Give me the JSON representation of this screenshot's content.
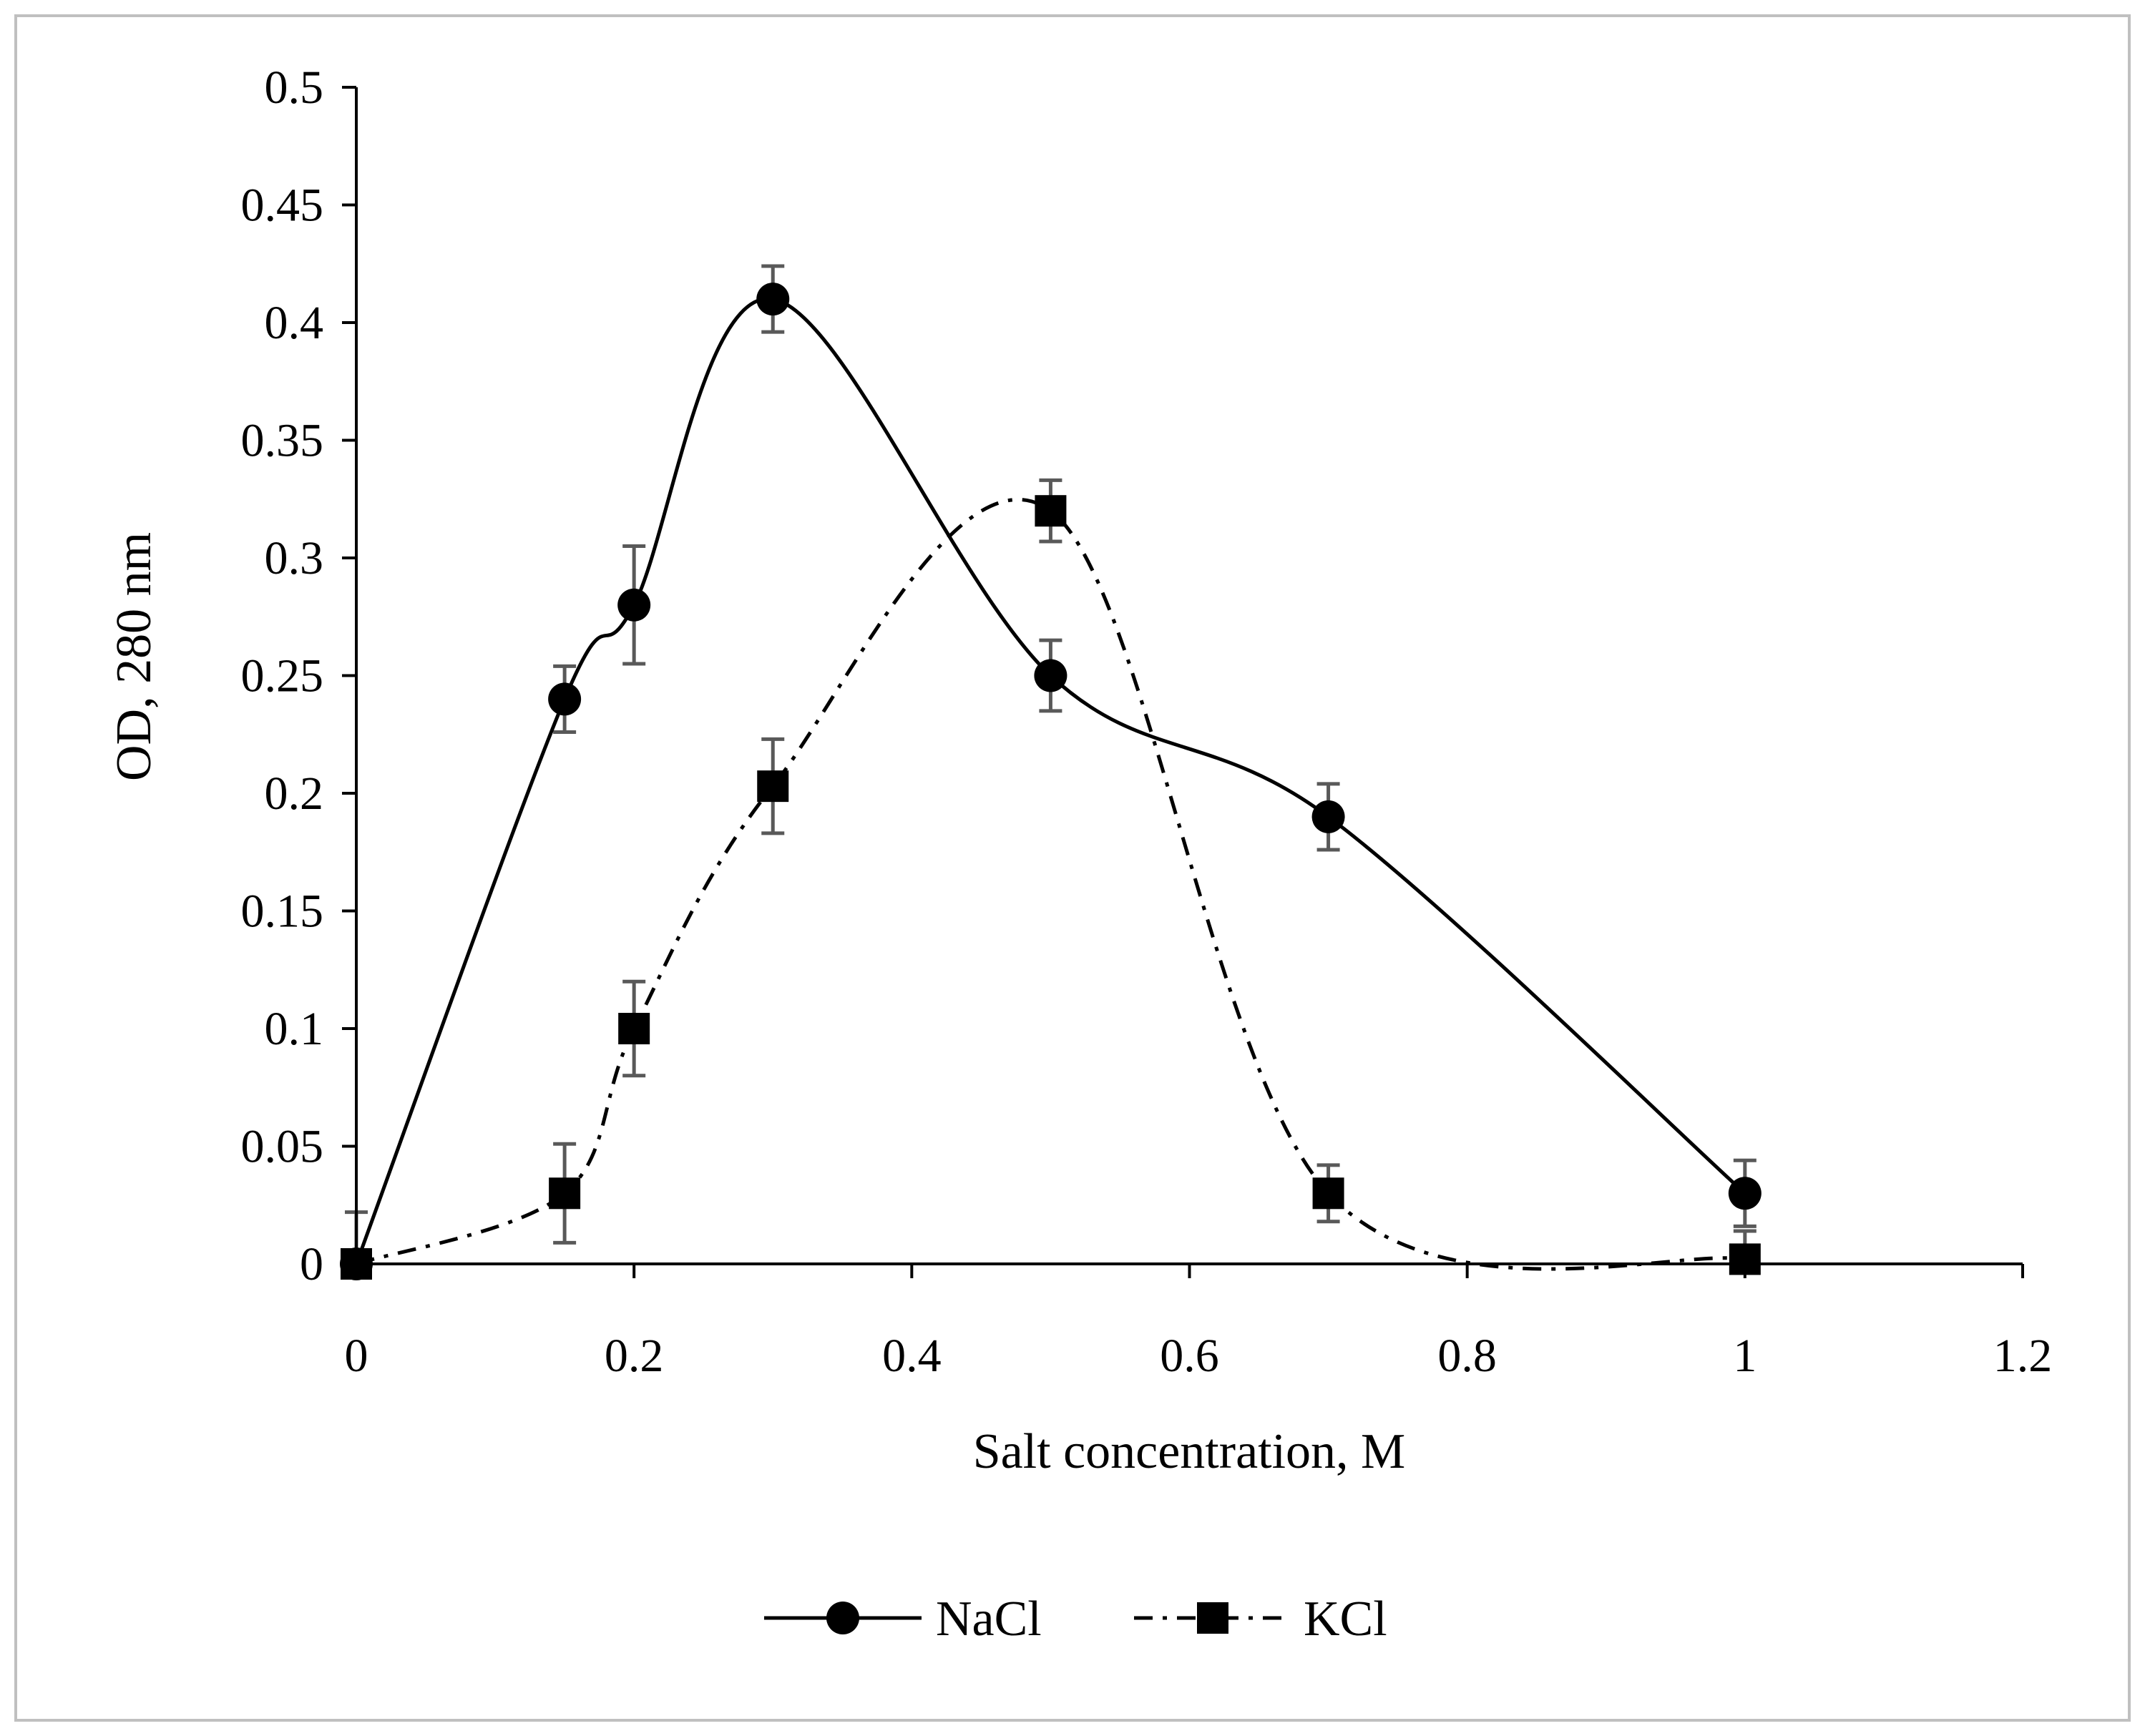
{
  "chart_data": {
    "type": "line",
    "title": "",
    "xlabel": "Salt concentration, M",
    "ylabel": "OD, 280 nm",
    "xlim": [
      0,
      1.2
    ],
    "ylim": [
      0,
      0.5
    ],
    "x_ticks": [
      0,
      0.2,
      0.4,
      0.6,
      0.8,
      1,
      1.2
    ],
    "x_tick_labels": [
      "0",
      "0.2",
      "0.4",
      "0.6",
      "0.8",
      "1",
      "1.2"
    ],
    "y_ticks": [
      0,
      0.05,
      0.1,
      0.15,
      0.2,
      0.25,
      0.3,
      0.35,
      0.4,
      0.45,
      0.5
    ],
    "y_tick_labels": [
      "0",
      "0.05",
      "0.1",
      "0.15",
      "0.2",
      "0.25",
      "0.3",
      "0.35",
      "0.4",
      "0.45",
      "0.5"
    ],
    "grid": false,
    "legend_position": "bottom",
    "series": [
      {
        "name": "NaCl",
        "marker": "circle",
        "line_style": "solid",
        "x": [
          0,
          0.15,
          0.2,
          0.3,
          0.5,
          0.7,
          1
        ],
        "y": [
          0,
          0.24,
          0.28,
          0.41,
          0.25,
          0.19,
          0.03
        ],
        "error": [
          0.022,
          0.014,
          0.025,
          0.014,
          0.015,
          0.014,
          0.014
        ]
      },
      {
        "name": "KCl",
        "marker": "square",
        "line_style": "dash-dot",
        "x": [
          0,
          0.15,
          0.2,
          0.3,
          0.5,
          0.7,
          1
        ],
        "y": [
          0,
          0.03,
          0.1,
          0.203,
          0.32,
          0.03,
          0.002
        ],
        "error": [
          0.005,
          0.021,
          0.02,
          0.02,
          0.013,
          0.012,
          0.012
        ]
      }
    ],
    "colors": {
      "line": "#000000",
      "error_bar": "#595959",
      "axis": "#000000",
      "frame": "#c0c0c0"
    }
  }
}
